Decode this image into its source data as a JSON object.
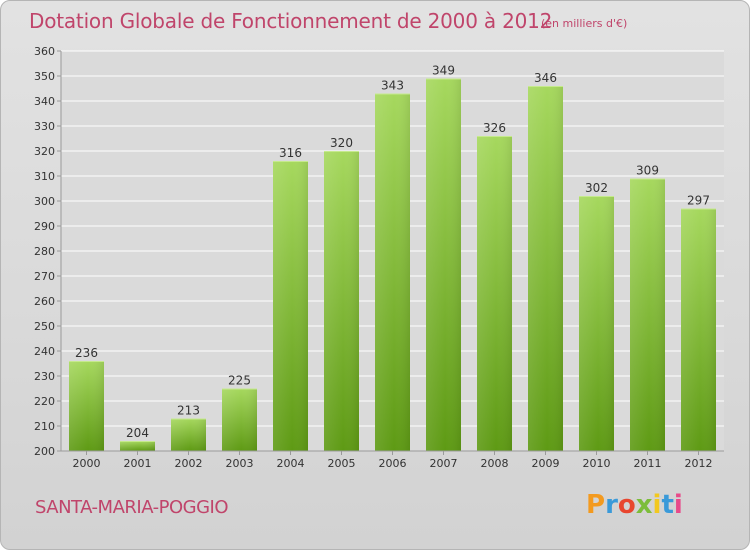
{
  "header": {
    "title": "Dotation Globale de Fonctionnement de 2000 à 2012",
    "subtitle": "(en milliers d'€)"
  },
  "footer": {
    "commune": "SANTA-MARIA-POGGIO",
    "logo_text": "Proxiti",
    "logo_colors": [
      "#f39a1f",
      "#3a9ad9",
      "#e8462f",
      "#7cbd3a",
      "#f2c81f",
      "#3a9ad9",
      "#e84a8a"
    ]
  },
  "colors": {
    "bar_top": "#a6d85e",
    "bar_bottom": "#5e9a14",
    "gridline": "#ffffff",
    "plot_background": "#dadada",
    "text": "#333333",
    "accent": "#c0456b"
  },
  "chart_data": {
    "type": "bar",
    "title": "Dotation Globale de Fonctionnement de 2000 à 2012",
    "subtitle": "(en milliers d'€)",
    "xlabel": "",
    "ylabel": "",
    "categories": [
      "2000",
      "2001",
      "2002",
      "2003",
      "2004",
      "2005",
      "2006",
      "2007",
      "2008",
      "2009",
      "2010",
      "2011",
      "2012"
    ],
    "values": [
      236,
      204,
      213,
      225,
      316,
      320,
      343,
      349,
      326,
      346,
      302,
      309,
      297
    ],
    "ylim": [
      200,
      360
    ],
    "ytick_step": 10,
    "grid": true,
    "data_labels": true
  }
}
